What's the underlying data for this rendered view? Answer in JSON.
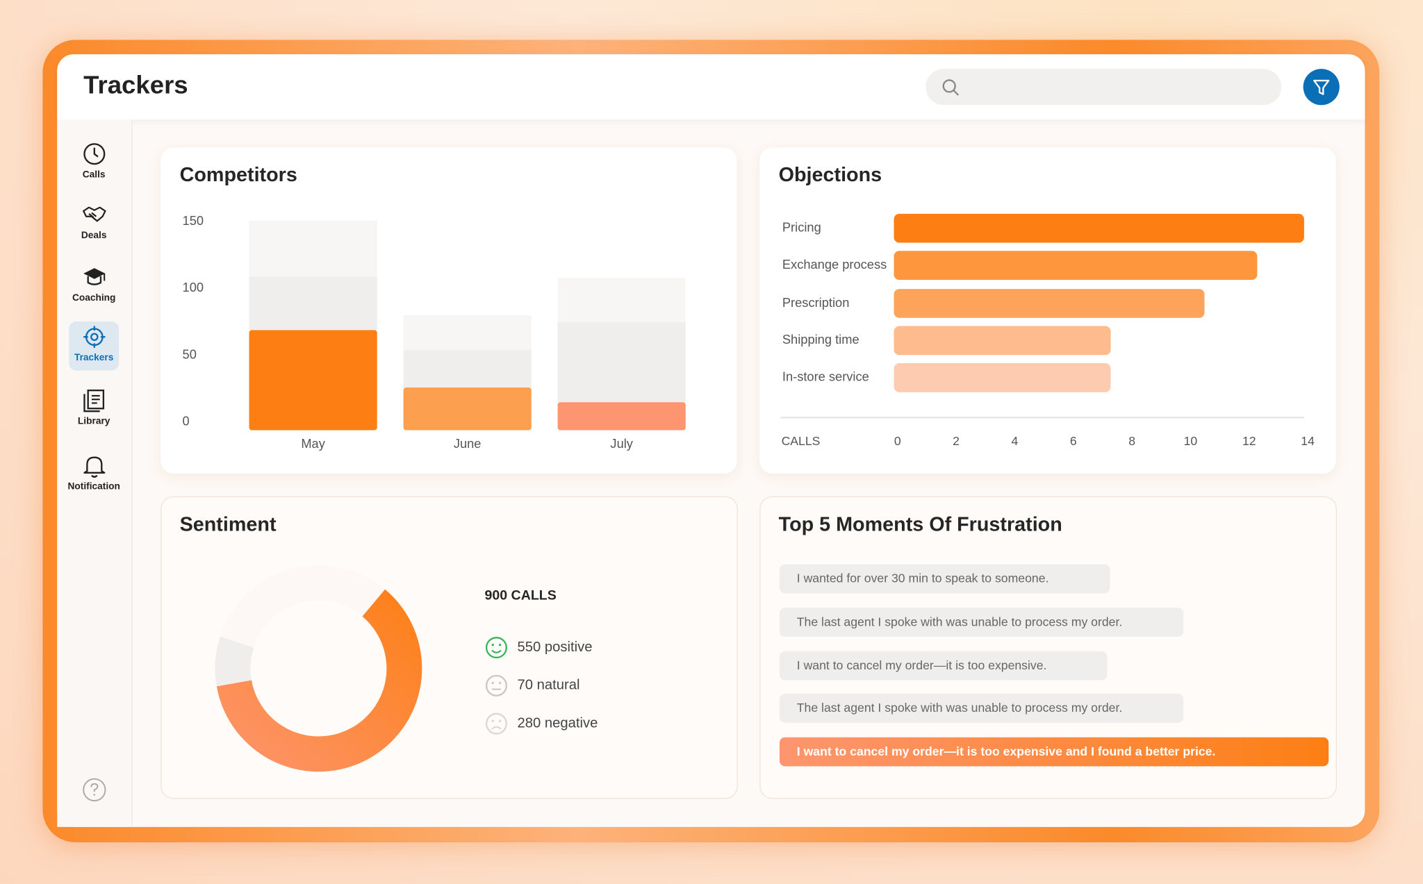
{
  "header": {
    "title": "Trackers"
  },
  "nav": {
    "items": [
      "Calls",
      "Deals",
      "Coaching",
      "Trackers",
      "Library",
      "Notification"
    ],
    "active": 3
  },
  "chart_data": [
    {
      "type": "stacked-bar",
      "title": "Competitors",
      "categories": [
        "May",
        "June",
        "July"
      ],
      "series": [
        {
          "colors": [
            "#fd7f14",
            "#fca050",
            "#fd9670"
          ],
          "values": [
            75,
            32,
            21
          ]
        },
        {
          "color": "#efeeec",
          "values": [
            40,
            28,
            60
          ]
        },
        {
          "color": "#f7f6f4",
          "values": [
            42,
            26,
            33
          ]
        }
      ],
      "ylim": [
        0,
        160
      ],
      "yticks": [
        0,
        50,
        100,
        150
      ]
    },
    {
      "type": "hbar",
      "title": "Objections",
      "categories": [
        "Pricing",
        "Exchange process",
        "Prescription",
        "Shipping time",
        "In-store service"
      ],
      "values": [
        14,
        12.4,
        10.6,
        7.4,
        7.4
      ],
      "colors": [
        "#fd7f14",
        "#fd963c",
        "#fda45a",
        "#fdbb8e",
        "#fdcbb0"
      ],
      "xlabel": "CALLS",
      "xlim": [
        0,
        14
      ],
      "xticks": [
        0,
        2,
        4,
        6,
        8,
        10,
        12,
        14
      ]
    },
    {
      "type": "donut",
      "title": "Sentiment",
      "subtitle": "900 CALLS",
      "series": [
        {
          "name": "positive",
          "color": "#fd7f14",
          "icon_color": "#3bb55a",
          "value": 550,
          "value_label": "550 positive"
        },
        {
          "name": "natural",
          "color": "#efeeec",
          "icon_color": "#c8c8c8",
          "value": 70,
          "value_label": "70 natural"
        },
        {
          "name": "negative",
          "color": "#fdf8f5",
          "icon_color": "#d8d8d8",
          "value": 280,
          "value_label": "280 negative"
        }
      ]
    }
  ],
  "frustration": {
    "title": "Top 5 Moments Of Frustration",
    "items": [
      "I wanted for over 30 min to speak to someone.",
      "The last agent I spoke with was unable to process my order.",
      "I want to cancel my order—it is too expensive.",
      "The last agent I spoke with was unable to process my order.",
      "I want to cancel my order—it is too expensive and I found a better price."
    ],
    "highlight": 4
  }
}
